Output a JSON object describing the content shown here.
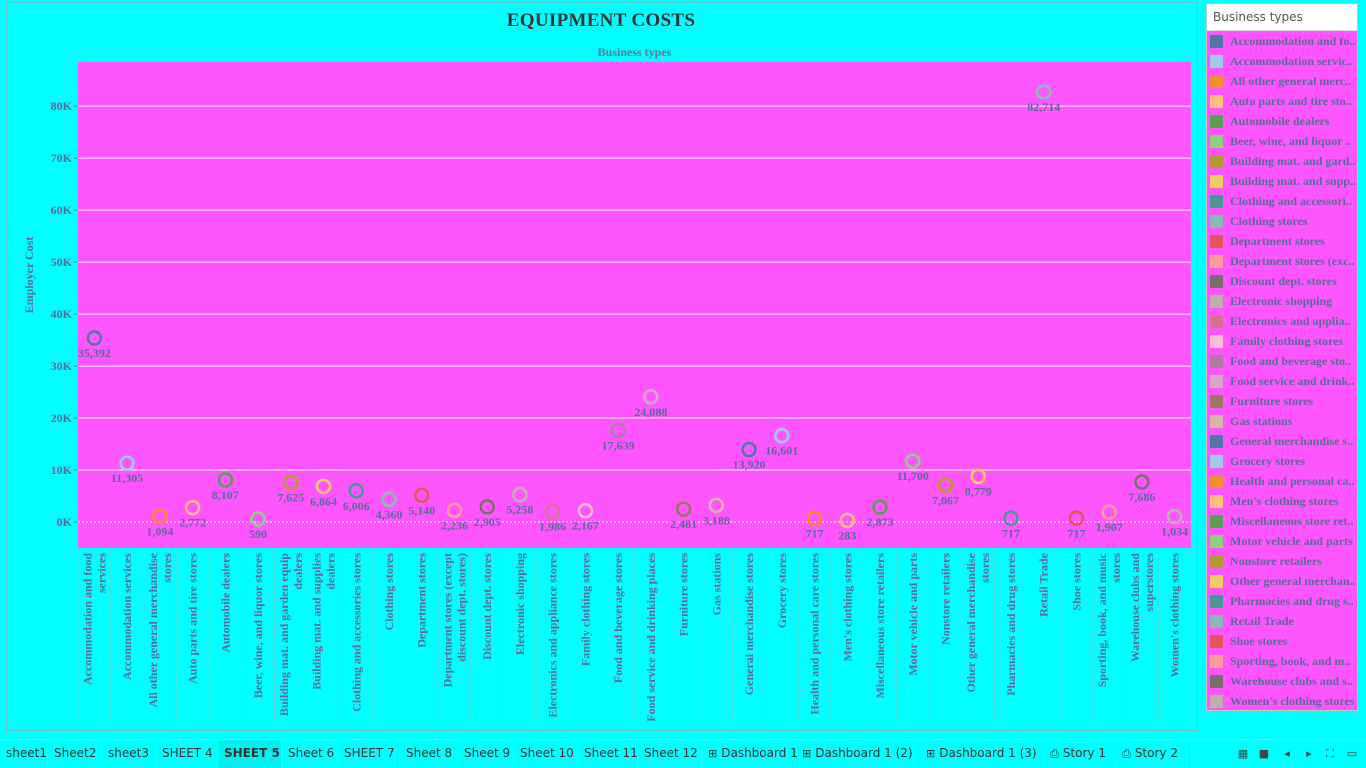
{
  "chart_data": {
    "type": "scatter",
    "title": "EQUIPMENT COSTS",
    "subtitle": "Business types",
    "ylabel": "Employer Cost",
    "ylim": [
      -5000,
      88500
    ],
    "yticks": [
      0,
      10000,
      20000,
      30000,
      40000,
      50000,
      60000,
      70000,
      80000
    ],
    "ytick_labels": [
      "0K",
      "10K",
      "20K",
      "30K",
      "40K",
      "50K",
      "60K",
      "70K",
      "80K"
    ],
    "grid": true,
    "plot_background": "#ff55ff",
    "categories": [
      {
        "name": "Accommodation and food services",
        "lines": [
          "Accommodation and food",
          "services"
        ],
        "value": 35392,
        "label": "35,392",
        "color": "#4e79a7"
      },
      {
        "name": "Accommodation services",
        "lines": [
          "Accommodation services"
        ],
        "value": 11305,
        "label": "11,305",
        "color": "#a0cbe8"
      },
      {
        "name": "All other general merchandise stores",
        "lines": [
          "All other general merchandise",
          "stores"
        ],
        "value": 1094,
        "label": "1,094",
        "color": "#f28e2b"
      },
      {
        "name": "Auto parts and tire stores",
        "lines": [
          "Auto parts and tire stores"
        ],
        "value": 2772,
        "label": "2,772",
        "color": "#ffbe7d"
      },
      {
        "name": "Automobile dealers",
        "lines": [
          "Automobile dealers"
        ],
        "value": 8107,
        "label": "8,107",
        "color": "#59a14f"
      },
      {
        "name": "Beer, wine, and liquor stores",
        "lines": [
          "Beer, wine, and liquor stores"
        ],
        "value": 590,
        "label": "590",
        "color": "#8cd17d"
      },
      {
        "name": "Building mat. and garden equip dealers",
        "lines": [
          "Building mat. and garden equip",
          "dealers"
        ],
        "value": 7625,
        "label": "7,625",
        "color": "#b6992d"
      },
      {
        "name": "Building mat. and supplies dealers",
        "lines": [
          "Building mat. and supplies",
          "dealers"
        ],
        "value": 6864,
        "label": "6,864",
        "color": "#f1ce63"
      },
      {
        "name": "Clothing and accessories stores",
        "lines": [
          "Clothing and accessories stores"
        ],
        "value": 6006,
        "label": "6,006",
        "color": "#499894"
      },
      {
        "name": "Clothing stores",
        "lines": [
          "Clothing stores"
        ],
        "value": 4360,
        "label": "4,360",
        "color": "#86bcb6"
      },
      {
        "name": "Department stores",
        "lines": [
          "Department stores"
        ],
        "value": 5140,
        "label": "5,140",
        "color": "#e15759"
      },
      {
        "name": "Department stores (except discount dept. stores)",
        "lines": [
          "Department stores (except",
          "discount dept. stores)"
        ],
        "value": 2236,
        "label": "2,236",
        "color": "#ff9d9a"
      },
      {
        "name": "Discount dept. stores",
        "lines": [
          "Discount dept. stores"
        ],
        "value": 2905,
        "label": "2,905",
        "color": "#79706e"
      },
      {
        "name": "Electronic shopping",
        "lines": [
          "Electronic shopping"
        ],
        "value": 5258,
        "label": "5,258",
        "color": "#bab0ac"
      },
      {
        "name": "Electronics and appliance stores",
        "lines": [
          "Electronics and appliance stores"
        ],
        "value": 1986,
        "label": "1,986",
        "color": "#d37295"
      },
      {
        "name": "Family clothing stores",
        "lines": [
          "Family clothing stores"
        ],
        "value": 2167,
        "label": "2,167",
        "color": "#fabfd2"
      },
      {
        "name": "Food and beverage stores",
        "lines": [
          "Food and beverage stores"
        ],
        "value": 17639,
        "label": "17,639",
        "color": "#b07aa1"
      },
      {
        "name": "Food service and drinking places",
        "lines": [
          "Food service and drinking places"
        ],
        "value": 24088,
        "label": "24,088",
        "color": "#d4a6c8"
      },
      {
        "name": "Furniture stores",
        "lines": [
          "Furniture stores"
        ],
        "value": 2481,
        "label": "2,481",
        "color": "#9d7660"
      },
      {
        "name": "Gas stations",
        "lines": [
          "Gas stations"
        ],
        "value": 3188,
        "label": "3,188",
        "color": "#d7b5a6"
      },
      {
        "name": "General merchandise stores",
        "lines": [
          "General merchandise stores"
        ],
        "value": 13920,
        "label": "13,920",
        "color": "#4e79a7"
      },
      {
        "name": "Grocery stores",
        "lines": [
          "Grocery stores"
        ],
        "value": 16601,
        "label": "16,601",
        "color": "#a0cbe8"
      },
      {
        "name": "Health and personal care stores",
        "lines": [
          "Health and personal care stores"
        ],
        "value": 717,
        "label": "717",
        "color": "#f28e2b"
      },
      {
        "name": "Men's clothing stores",
        "lines": [
          "Men's clothing stores"
        ],
        "value": 283,
        "label": "283",
        "color": "#ffbe7d"
      },
      {
        "name": "Miscellaneous store retailers",
        "lines": [
          "Miscellaneous store retailers"
        ],
        "value": 2873,
        "label": "2,873",
        "color": "#59a14f"
      },
      {
        "name": "Motor vehicle and parts",
        "lines": [
          "Motor vehicle and parts"
        ],
        "value": 11700,
        "label": "11,700",
        "color": "#8cd17d"
      },
      {
        "name": "Nonstore retailers",
        "lines": [
          "Nonstore retailers"
        ],
        "value": 7067,
        "label": "7,067",
        "color": "#b6992d"
      },
      {
        "name": "Other general merchandise stores",
        "lines": [
          "Other general merchandise",
          "stores"
        ],
        "value": 8779,
        "label": "8,779",
        "color": "#f1ce63"
      },
      {
        "name": "Pharmacies and drug stores",
        "lines": [
          "Pharmacies and drug stores"
        ],
        "value": 717,
        "label": "717",
        "color": "#499894"
      },
      {
        "name": "Retail Trade",
        "lines": [
          "Retail Trade"
        ],
        "value": 82714,
        "label": "82,714",
        "color": "#86bcb6"
      },
      {
        "name": "Shoe stores",
        "lines": [
          "Shoe stores"
        ],
        "value": 717,
        "label": "717",
        "color": "#e15759"
      },
      {
        "name": "Sporting, book, and music stores",
        "lines": [
          "Sporting, book, and music",
          "stores"
        ],
        "value": 1907,
        "label": "1,907",
        "color": "#ff9d9a"
      },
      {
        "name": "Warehouse clubs and superstores",
        "lines": [
          "Warehouse clubs and",
          "superstores"
        ],
        "value": 7686,
        "label": "7,686",
        "color": "#79706e"
      },
      {
        "name": "Women's clothing stores",
        "lines": [
          "Women's clothing stores"
        ],
        "value": 1034,
        "label": "1,034",
        "color": "#bab0ac"
      }
    ]
  },
  "legend": {
    "header": "Business types",
    "placement": "right",
    "items": [
      {
        "label": "Accommodation and fo..",
        "color": "#4e79a7"
      },
      {
        "label": "Accommodation servic..",
        "color": "#a0cbe8"
      },
      {
        "label": "All other general merc..",
        "color": "#f28e2b"
      },
      {
        "label": "Auto parts and tire sto..",
        "color": "#ffbe7d"
      },
      {
        "label": "Automobile dealers",
        "color": "#59a14f"
      },
      {
        "label": "Beer, wine, and liquor ..",
        "color": "#8cd17d"
      },
      {
        "label": "Building mat. and gard..",
        "color": "#b6992d"
      },
      {
        "label": "Building mat. and supp..",
        "color": "#f1ce63"
      },
      {
        "label": "Clothing and accessori..",
        "color": "#499894"
      },
      {
        "label": "Clothing stores",
        "color": "#86bcb6"
      },
      {
        "label": "Department stores",
        "color": "#e15759"
      },
      {
        "label": "Department stores (exc..",
        "color": "#ff9d9a"
      },
      {
        "label": "Discount dept. stores",
        "color": "#79706e"
      },
      {
        "label": "Electronic shopping",
        "color": "#bab0ac"
      },
      {
        "label": "Electronics and applia..",
        "color": "#d37295"
      },
      {
        "label": "Family clothing stores",
        "color": "#fabfd2"
      },
      {
        "label": "Food and beverage sto..",
        "color": "#b07aa1"
      },
      {
        "label": "Food service and drink..",
        "color": "#d4a6c8"
      },
      {
        "label": "Furniture stores",
        "color": "#9d7660"
      },
      {
        "label": "Gas stations",
        "color": "#d7b5a6"
      },
      {
        "label": "General merchandise s..",
        "color": "#4e79a7"
      },
      {
        "label": "Grocery stores",
        "color": "#a0cbe8"
      },
      {
        "label": "Health and personal ca..",
        "color": "#f28e2b"
      },
      {
        "label": "Men's clothing stores",
        "color": "#ffbe7d"
      },
      {
        "label": "Miscellaneous store ret..",
        "color": "#59a14f"
      },
      {
        "label": "Motor vehicle and parts",
        "color": "#8cd17d"
      },
      {
        "label": "Nonstore retailers",
        "color": "#b6992d"
      },
      {
        "label": "Other general merchan..",
        "color": "#f1ce63"
      },
      {
        "label": "Pharmacies and drug s..",
        "color": "#499894"
      },
      {
        "label": "Retail Trade",
        "color": "#86bcb6"
      },
      {
        "label": "Shoe stores",
        "color": "#e15759"
      },
      {
        "label": "Sporting, book, and m..",
        "color": "#ff9d9a"
      },
      {
        "label": "Warehouse clubs and s..",
        "color": "#79706e"
      },
      {
        "label": "Women's clothing stores",
        "color": "#bab0ac"
      }
    ]
  },
  "tabs": [
    {
      "label": "sheet1",
      "active": false,
      "icon": ""
    },
    {
      "label": "Sheet2",
      "active": false,
      "icon": ""
    },
    {
      "label": "sheet3",
      "active": false,
      "icon": ""
    },
    {
      "label": "SHEET 4",
      "active": false,
      "icon": ""
    },
    {
      "label": "SHEET 5",
      "active": true,
      "icon": ""
    },
    {
      "label": "Sheet 6",
      "active": false,
      "icon": ""
    },
    {
      "label": "SHEET 7",
      "active": false,
      "icon": ""
    },
    {
      "label": "Sheet 8",
      "active": false,
      "icon": ""
    },
    {
      "label": "Sheet 9",
      "active": false,
      "icon": ""
    },
    {
      "label": "Sheet 10",
      "active": false,
      "icon": ""
    },
    {
      "label": "Sheet 11",
      "active": false,
      "icon": ""
    },
    {
      "label": "Sheet 12",
      "active": false,
      "icon": ""
    },
    {
      "label": "Dashboard 1",
      "active": false,
      "icon": "dashboard-icon"
    },
    {
      "label": "Dashboard 1 (2)",
      "active": false,
      "icon": "dashboard-icon"
    },
    {
      "label": "Dashboard 1 (3)",
      "active": false,
      "icon": "dashboard-icon"
    },
    {
      "label": "Story 1",
      "active": false,
      "icon": "story-icon"
    },
    {
      "label": "Story 2",
      "active": false,
      "icon": "story-icon"
    }
  ],
  "controls": [
    {
      "name": "film-strip-icon",
      "glyph": "▦"
    },
    {
      "name": "tab-view-icon",
      "glyph": "■"
    },
    {
      "name": "prev-sheet-icon",
      "glyph": "◂"
    },
    {
      "name": "next-sheet-icon",
      "glyph": "▸"
    },
    {
      "name": "fullscreen-icon",
      "glyph": "⛶"
    },
    {
      "name": "present-icon",
      "glyph": "▭"
    }
  ]
}
